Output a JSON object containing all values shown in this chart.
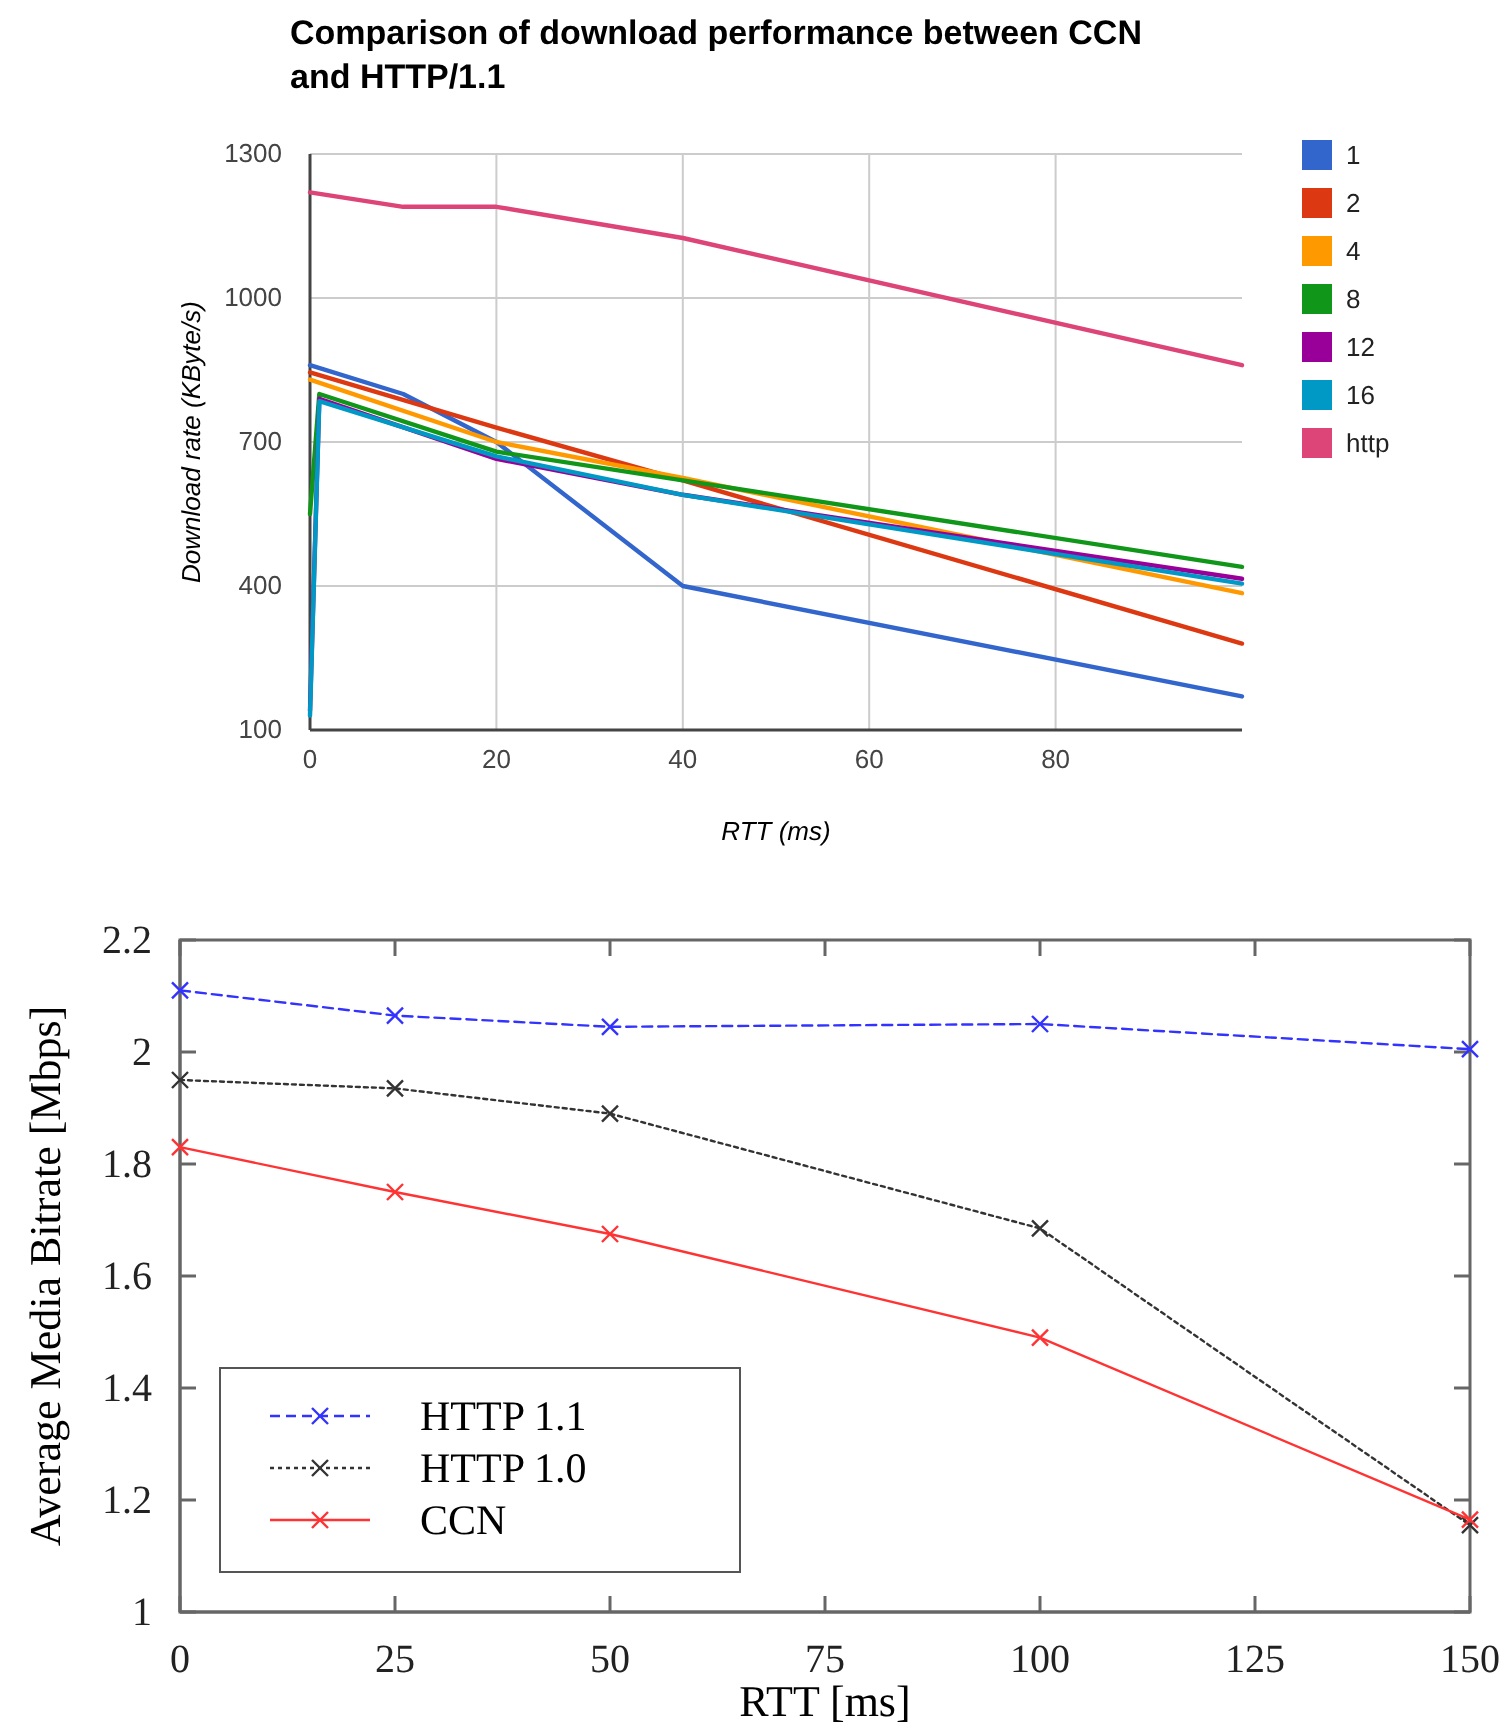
{
  "chart_data": [
    {
      "type": "line",
      "title": "Comparison of download performance between CCN and HTTP/1.1",
      "xlabel": "RTT (ms)",
      "ylabel": "Download rate (KByte/s)",
      "xlim": [
        0,
        100
      ],
      "ylim": [
        100,
        1300
      ],
      "xticks": [
        0,
        20,
        40,
        60,
        80
      ],
      "yticks": [
        100,
        400,
        700,
        1000,
        1300
      ],
      "grid": true,
      "legend": "right",
      "series": [
        {
          "name": "1",
          "color": "#3366cc",
          "x": [
            0,
            10,
            20,
            40,
            100
          ],
          "values": [
            860,
            800,
            700,
            400,
            170
          ]
        },
        {
          "name": "2",
          "color": "#dc3912",
          "x": [
            0,
            20,
            40,
            100
          ],
          "values": [
            845,
            730,
            620,
            280
          ]
        },
        {
          "name": "4",
          "color": "#ff9900",
          "x": [
            0,
            20,
            40,
            100
          ],
          "values": [
            830,
            700,
            625,
            385
          ]
        },
        {
          "name": "8",
          "color": "#109618",
          "x": [
            0,
            1,
            20,
            40,
            100
          ],
          "values": [
            550,
            800,
            680,
            620,
            440
          ]
        },
        {
          "name": "12",
          "color": "#990099",
          "x": [
            0,
            1,
            20,
            40,
            100
          ],
          "values": [
            140,
            790,
            665,
            590,
            415
          ]
        },
        {
          "name": "16",
          "color": "#0099c6",
          "x": [
            0,
            1,
            20,
            40,
            100
          ],
          "values": [
            130,
            785,
            670,
            590,
            405
          ]
        },
        {
          "name": "http",
          "color": "#dd4477",
          "x": [
            0,
            10,
            20,
            40,
            100
          ],
          "values": [
            1220,
            1190,
            1190,
            1125,
            860
          ]
        }
      ]
    },
    {
      "type": "line",
      "xlabel": "RTT [ms]",
      "ylabel": "Average Media Bitrate [Mbps]",
      "xlim": [
        0,
        150
      ],
      "ylim": [
        1,
        2.2
      ],
      "xticks": [
        0,
        25,
        50,
        75,
        100,
        125,
        150
      ],
      "yticks": [
        1,
        1.2,
        1.4,
        1.6,
        1.8,
        2,
        2.2
      ],
      "grid": false,
      "legend": "bottom left",
      "marker": "cross",
      "x": [
        0,
        25,
        50,
        100,
        150
      ],
      "series": [
        {
          "name": "HTTP 1.1",
          "color": "#3333ff",
          "line_style": "dashed",
          "values": [
            2.11,
            2.065,
            2.045,
            2.05,
            2.005
          ]
        },
        {
          "name": "HTTP 1.0",
          "color": "#333333",
          "line_style": "dotted",
          "values": [
            1.95,
            1.935,
            1.89,
            1.685,
            1.155
          ]
        },
        {
          "name": "CCN",
          "color": "#ff3333",
          "line_style": "solid",
          "values": [
            1.83,
            1.75,
            1.675,
            1.49,
            1.165
          ]
        }
      ]
    }
  ]
}
